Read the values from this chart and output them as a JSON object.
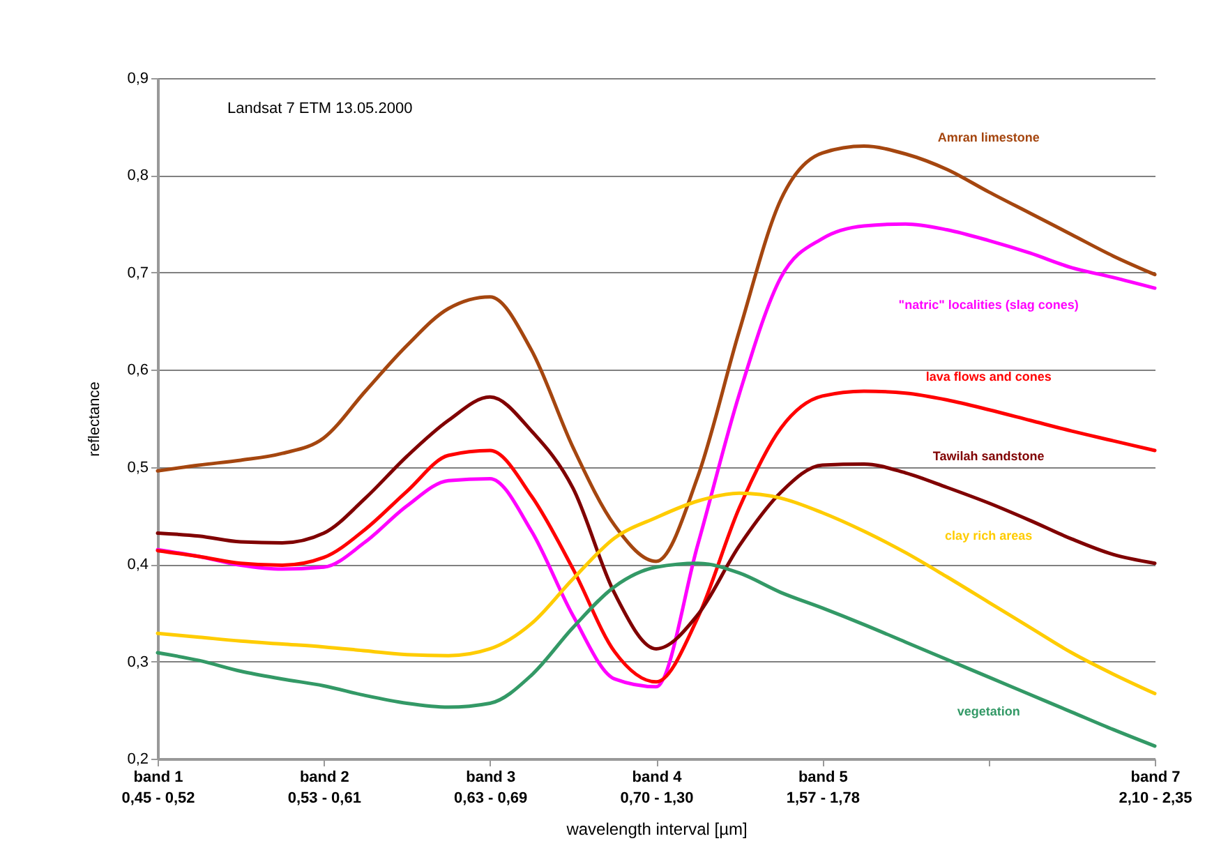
{
  "chart_data": {
    "type": "line",
    "xlabel": "wavelength interval [µm]",
    "ylabel": "reflectance",
    "annotations": [
      "Landsat 7 ETM 13.05.2000"
    ],
    "categories": [
      "band 1\n0,45 - 0,52",
      null,
      null,
      null,
      "band 2\n0,53 - 0,61",
      null,
      null,
      null,
      "band 3\n0,63 - 0,69",
      null,
      null,
      null,
      "band 4\n0,70 - 1,30",
      null,
      null,
      null,
      "band 5\n1,57 - 1,78",
      null,
      null,
      null,
      null,
      null,
      null,
      null,
      "band 7\n2,10 - 2,35"
    ],
    "ylim": [
      0.2,
      0.9
    ],
    "yticks": [
      {
        "value": 0.2,
        "label": "0,2"
      },
      {
        "value": 0.3,
        "label": "0,3"
      },
      {
        "value": 0.4,
        "label": "0,4"
      },
      {
        "value": 0.5,
        "label": "0,5"
      },
      {
        "value": 0.6,
        "label": "0,6"
      },
      {
        "value": 0.7,
        "label": "0,7"
      },
      {
        "value": 0.8,
        "label": "0,8"
      },
      {
        "value": 0.9,
        "label": "0,9"
      }
    ],
    "grid": "y",
    "marker": "none",
    "line_style": "solid",
    "series": [
      {
        "name": "Amran limestone",
        "color": "#a5460f",
        "values": [
          0.496,
          0.502,
          0.507,
          0.514,
          0.53,
          0.578,
          0.625,
          0.663,
          0.675,
          0.62,
          0.52,
          0.44,
          0.403,
          0.49,
          0.64,
          0.775,
          0.823,
          0.83,
          0.822,
          0.806,
          0.783,
          0.761,
          0.739,
          0.717,
          0.698
        ]
      },
      {
        "name": "\"natric\" localities  (slag cones)",
        "color": "#ff00ff",
        "values": [
          0.415,
          0.408,
          0.399,
          0.395,
          0.397,
          0.423,
          0.46,
          0.486,
          0.488,
          0.434,
          0.347,
          0.282,
          0.274,
          0.42,
          0.575,
          0.695,
          0.735,
          0.748,
          0.75,
          0.744,
          0.733,
          0.72,
          0.705,
          0.695,
          0.684
        ]
      },
      {
        "name": "lava flows and cones",
        "color": "#ff0000",
        "values": [
          0.414,
          0.408,
          0.401,
          0.399,
          0.407,
          0.436,
          0.475,
          0.512,
          0.517,
          0.47,
          0.395,
          0.31,
          0.279,
          0.345,
          0.458,
          0.54,
          0.573,
          0.578,
          0.576,
          0.569,
          0.559,
          0.548,
          0.537,
          0.527,
          0.517
        ]
      },
      {
        "name": "Tawilah sandstone",
        "color": "#800000",
        "values": [
          0.432,
          0.429,
          0.423,
          0.422,
          0.432,
          0.468,
          0.511,
          0.548,
          0.572,
          0.537,
          0.478,
          0.37,
          0.313,
          0.348,
          0.419,
          0.474,
          0.502,
          0.503,
          0.494,
          0.479,
          0.463,
          0.445,
          0.426,
          0.41,
          0.401
        ]
      },
      {
        "name": "clay rich areas",
        "color": "#ffcc00",
        "values": [
          0.329,
          0.325,
          0.321,
          0.318,
          0.315,
          0.311,
          0.307,
          0.306,
          0.313,
          0.339,
          0.385,
          0.427,
          0.448,
          0.465,
          0.473,
          0.468,
          0.453,
          0.434,
          0.412,
          0.387,
          0.361,
          0.335,
          0.309,
          0.287,
          0.267
        ]
      },
      {
        "name": "vegetation",
        "color": "#339966",
        "values": [
          0.309,
          0.301,
          0.29,
          0.282,
          0.275,
          0.265,
          0.257,
          0.253,
          0.257,
          0.286,
          0.335,
          0.377,
          0.397,
          0.401,
          0.391,
          0.371,
          0.355,
          0.338,
          0.32,
          0.302,
          0.284,
          0.266,
          0.248,
          0.23,
          0.213
        ]
      }
    ]
  }
}
